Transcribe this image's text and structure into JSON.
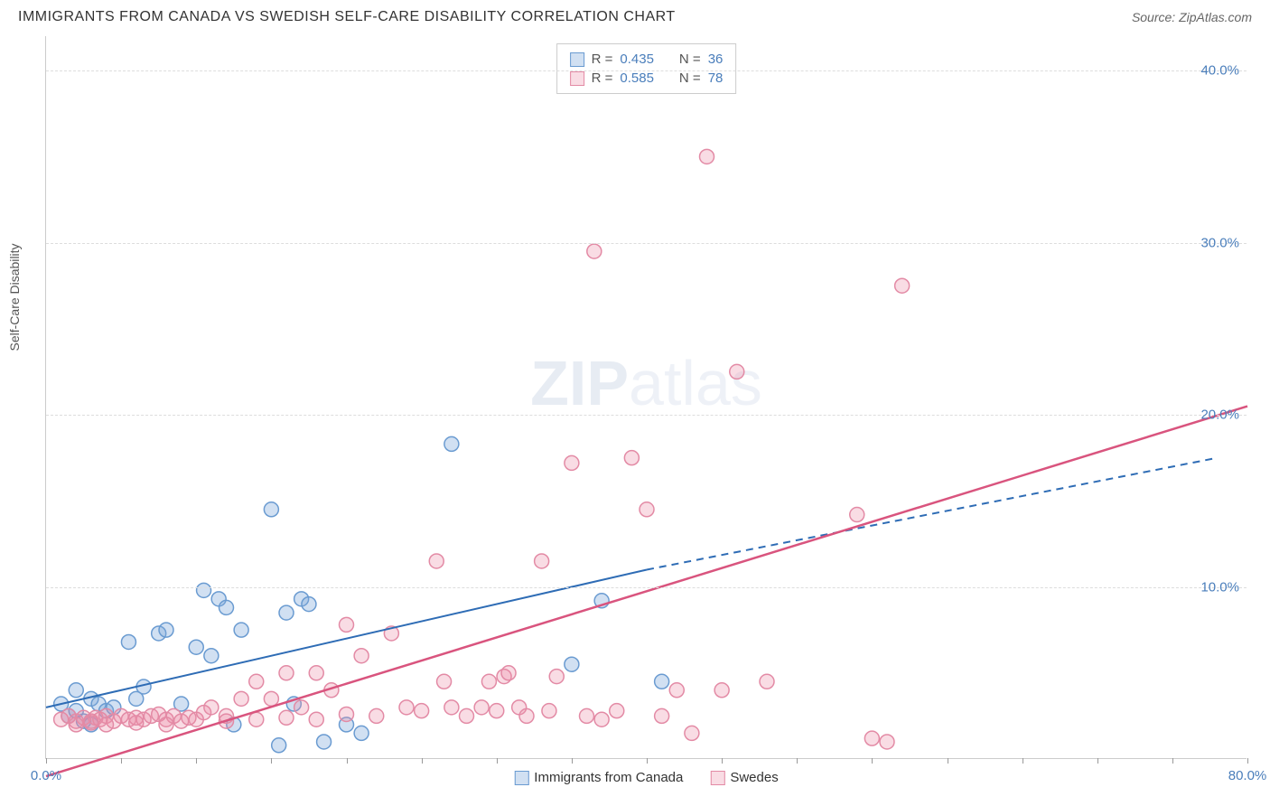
{
  "header": {
    "title": "IMMIGRANTS FROM CANADA VS SWEDISH SELF-CARE DISABILITY CORRELATION CHART",
    "source_label": "Source: ",
    "source_value": "ZipAtlas.com"
  },
  "watermark": {
    "text_bold": "ZIP",
    "text_light": "atlas"
  },
  "chart": {
    "type": "scatter",
    "ylabel": "Self-Care Disability",
    "xlim": [
      0,
      80
    ],
    "ylim": [
      0,
      42
    ],
    "xtick_positions": [
      0,
      5,
      10,
      15,
      20,
      25,
      30,
      35,
      40,
      45,
      50,
      55,
      60,
      65,
      70,
      75,
      80
    ],
    "xtick_labels": {
      "0": "0.0%",
      "80": "80.0%"
    },
    "ytick_positions": [
      10,
      20,
      30,
      40
    ],
    "ytick_labels": [
      "10.0%",
      "20.0%",
      "30.0%",
      "40.0%"
    ],
    "background_color": "#ffffff",
    "grid_color": "#dddddd",
    "marker_radius": 8,
    "marker_stroke_width": 1.5,
    "series": [
      {
        "name": "Immigrants from Canada",
        "fill": "rgba(123,167,217,0.35)",
        "stroke": "#6a9bd1",
        "points": [
          [
            1,
            3.2
          ],
          [
            1.5,
            2.5
          ],
          [
            2,
            2.8
          ],
          [
            2.5,
            2.2
          ],
          [
            3,
            3.5
          ],
          [
            3,
            2.0
          ],
          [
            3.5,
            3.2
          ],
          [
            4,
            2.8
          ],
          [
            5.5,
            6.8
          ],
          [
            6,
            3.5
          ],
          [
            7.5,
            7.3
          ],
          [
            8,
            7.5
          ],
          [
            9,
            3.2
          ],
          [
            10,
            6.5
          ],
          [
            10.5,
            9.8
          ],
          [
            11,
            6.0
          ],
          [
            11.5,
            9.3
          ],
          [
            12,
            8.8
          ],
          [
            12.5,
            2.0
          ],
          [
            15,
            14.5
          ],
          [
            15.5,
            0.8
          ],
          [
            16,
            8.5
          ],
          [
            16.5,
            3.2
          ],
          [
            17,
            9.3
          ],
          [
            17.5,
            9.0
          ],
          [
            18.5,
            1.0
          ],
          [
            20,
            2.0
          ],
          [
            21,
            1.5
          ],
          [
            27,
            18.3
          ],
          [
            35,
            5.5
          ],
          [
            37,
            9.2
          ],
          [
            41,
            4.5
          ],
          [
            2,
            4.0
          ],
          [
            4.5,
            3.0
          ],
          [
            6.5,
            4.2
          ],
          [
            13,
            7.5
          ]
        ],
        "trend": {
          "solid": [
            [
              0,
              3.0
            ],
            [
              40,
              11.0
            ]
          ],
          "dashed": [
            [
              40,
              11.0
            ],
            [
              78,
              17.5
            ]
          ],
          "color": "#2e6cb5",
          "width": 2
        }
      },
      {
        "name": "Swedes",
        "fill": "rgba(235,140,165,0.30)",
        "stroke": "#e38aa5",
        "points": [
          [
            1,
            2.3
          ],
          [
            1.5,
            2.5
          ],
          [
            2,
            2.2
          ],
          [
            2.5,
            2.4
          ],
          [
            3,
            2.2
          ],
          [
            3.3,
            2.4
          ],
          [
            3.6,
            2.3
          ],
          [
            4,
            2.5
          ],
          [
            4.5,
            2.2
          ],
          [
            5,
            2.5
          ],
          [
            5.5,
            2.3
          ],
          [
            6,
            2.4
          ],
          [
            6.5,
            2.3
          ],
          [
            7,
            2.5
          ],
          [
            7.5,
            2.6
          ],
          [
            8,
            2.3
          ],
          [
            8.5,
            2.5
          ],
          [
            9,
            2.2
          ],
          [
            9.5,
            2.4
          ],
          [
            10,
            2.3
          ],
          [
            10.5,
            2.7
          ],
          [
            11,
            3.0
          ],
          [
            12,
            2.5
          ],
          [
            13,
            3.5
          ],
          [
            14,
            4.5
          ],
          [
            15,
            3.5
          ],
          [
            16,
            5.0
          ],
          [
            17,
            3.0
          ],
          [
            18,
            5.0
          ],
          [
            19,
            4.0
          ],
          [
            20,
            7.8
          ],
          [
            21,
            6.0
          ],
          [
            22,
            2.5
          ],
          [
            23,
            7.3
          ],
          [
            24,
            3.0
          ],
          [
            25,
            2.8
          ],
          [
            26,
            11.5
          ],
          [
            26.5,
            4.5
          ],
          [
            27,
            3.0
          ],
          [
            28,
            2.5
          ],
          [
            29,
            3.0
          ],
          [
            29.5,
            4.5
          ],
          [
            30,
            2.8
          ],
          [
            30.5,
            4.8
          ],
          [
            30.8,
            5.0
          ],
          [
            31.5,
            3.0
          ],
          [
            32,
            2.5
          ],
          [
            33,
            11.5
          ],
          [
            33.5,
            2.8
          ],
          [
            34,
            4.8
          ],
          [
            35,
            17.2
          ],
          [
            36,
            2.5
          ],
          [
            36.5,
            29.5
          ],
          [
            37,
            2.3
          ],
          [
            38,
            2.8
          ],
          [
            39,
            17.5
          ],
          [
            40,
            14.5
          ],
          [
            41,
            2.5
          ],
          [
            42,
            4.0
          ],
          [
            43,
            1.5
          ],
          [
            44,
            35.0
          ],
          [
            45,
            4.0
          ],
          [
            46,
            22.5
          ],
          [
            48,
            4.5
          ],
          [
            54,
            14.2
          ],
          [
            55,
            1.2
          ],
          [
            56,
            1.0
          ],
          [
            57,
            27.5
          ],
          [
            2,
            2.0
          ],
          [
            3,
            2.1
          ],
          [
            4,
            2.0
          ],
          [
            6,
            2.1
          ],
          [
            8,
            2.0
          ],
          [
            12,
            2.2
          ],
          [
            14,
            2.3
          ],
          [
            16,
            2.4
          ],
          [
            18,
            2.3
          ],
          [
            20,
            2.6
          ]
        ],
        "trend": {
          "solid": [
            [
              0,
              -1.0
            ],
            [
              80,
              20.5
            ]
          ],
          "dashed": null,
          "color": "#d9547e",
          "width": 2.5
        }
      }
    ],
    "legend_box": {
      "rows": [
        {
          "swatch_fill": "rgba(123,167,217,0.35)",
          "swatch_stroke": "#6a9bd1",
          "r_label": "R = ",
          "r_value": "0.435",
          "n_label": "N = ",
          "n_value": "36"
        },
        {
          "swatch_fill": "rgba(235,140,165,0.30)",
          "swatch_stroke": "#e38aa5",
          "r_label": "R = ",
          "r_value": "0.585",
          "n_label": "N = ",
          "n_value": "78"
        }
      ]
    },
    "bottom_legend": [
      {
        "swatch_fill": "rgba(123,167,217,0.35)",
        "swatch_stroke": "#6a9bd1",
        "label": "Immigrants from Canada"
      },
      {
        "swatch_fill": "rgba(235,140,165,0.30)",
        "swatch_stroke": "#e38aa5",
        "label": "Swedes"
      }
    ]
  }
}
